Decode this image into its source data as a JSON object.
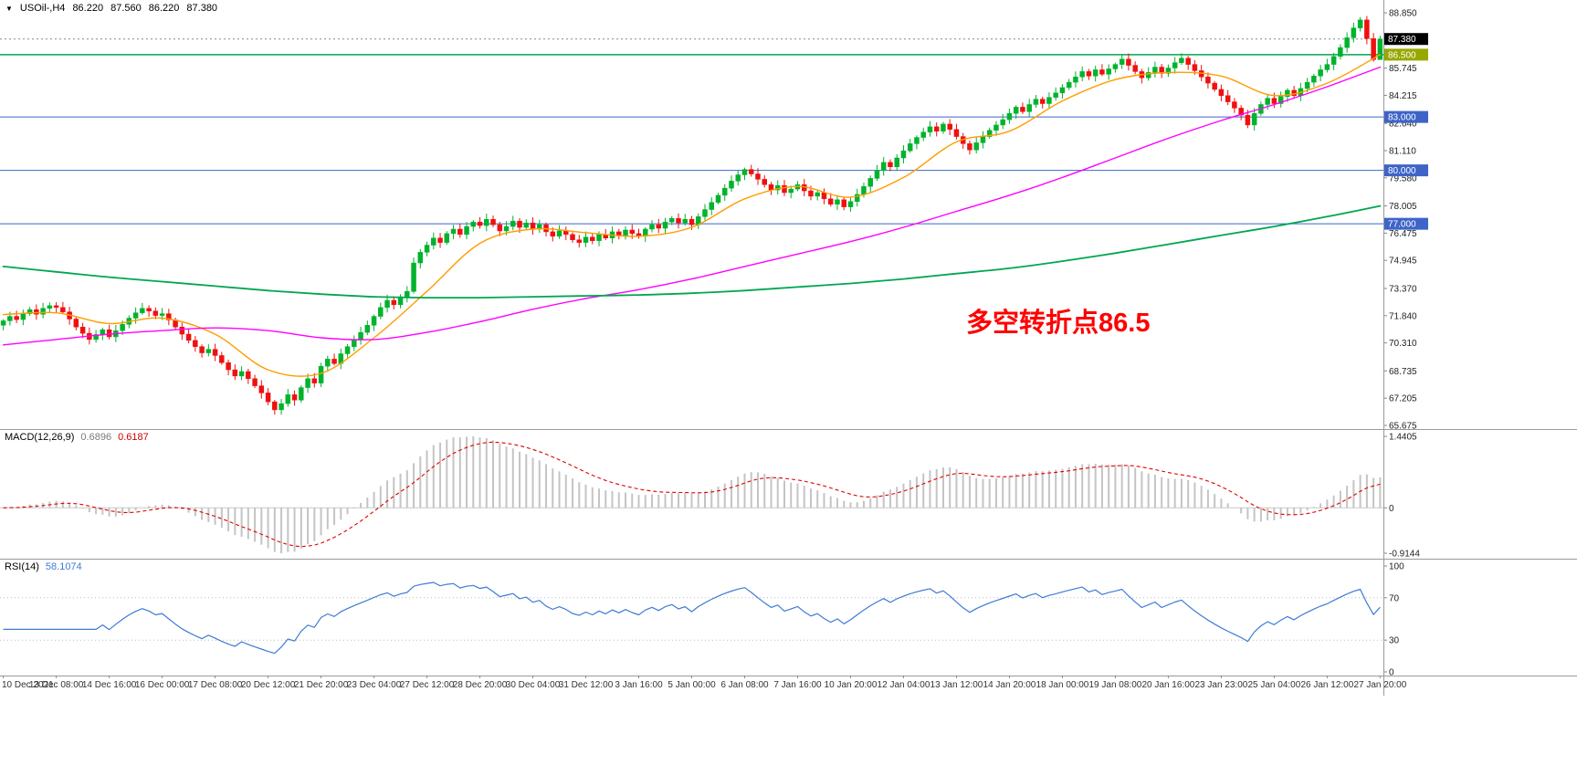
{
  "header": {
    "collapse_icon": "▼",
    "symbol_timeframe": "USOil-,H4",
    "open": "86.220",
    "high": "87.560",
    "low": "86.220",
    "close": "87.380"
  },
  "chart_data": {
    "type": "candlestick",
    "symbol": "USOil-",
    "timeframe": "H4",
    "legend_position": "none",
    "grid": false,
    "x_labels": [
      "10 Dec 2021",
      "13 Dec 08:00",
      "14 Dec 16:00",
      "16 Dec 00:00",
      "17 Dec 08:00",
      "20 Dec 12:00",
      "21 Dec 20:00",
      "23 Dec 04:00",
      "27 Dec 12:00",
      "28 Dec 20:00",
      "30 Dec 04:00",
      "31 Dec 12:00",
      "3 Jan 16:00",
      "5 Jan 00:00",
      "6 Jan 08:00",
      "7 Jan 16:00",
      "10 Jan 20:00",
      "12 Jan 04:00",
      "13 Jan 12:00",
      "14 Jan 20:00",
      "18 Jan 00:00",
      "19 Jan 08:00",
      "20 Jan 16:00",
      "23 Jan 23:00",
      "25 Jan 04:00",
      "26 Jan 12:00",
      "27 Jan 20:00"
    ],
    "candles_per_label_gap": 8,
    "first_open": 71.3,
    "ohlc_current": {
      "open": 86.22,
      "high": 87.56,
      "low": 86.22,
      "close": 87.38
    },
    "closes": [
      71.55,
      71.8,
      71.62,
      71.95,
      72.18,
      71.92,
      72.25,
      72.4,
      72.3,
      72.05,
      71.65,
      71.2,
      70.85,
      70.5,
      70.78,
      71.05,
      70.65,
      71.0,
      71.35,
      71.7,
      72.0,
      72.25,
      72.1,
      71.85,
      71.95,
      71.6,
      71.2,
      70.8,
      70.45,
      70.1,
      69.75,
      69.95,
      69.6,
      69.2,
      68.8,
      68.45,
      68.7,
      68.3,
      67.9,
      67.5,
      67.0,
      66.55,
      66.9,
      67.4,
      67.1,
      67.8,
      68.3,
      68.05,
      69.0,
      69.4,
      69.15,
      69.7,
      70.1,
      70.5,
      70.9,
      71.3,
      71.8,
      72.3,
      72.7,
      72.45,
      72.9,
      73.2,
      74.8,
      75.4,
      75.8,
      76.2,
      75.95,
      76.45,
      76.7,
      76.4,
      76.85,
      77.1,
      76.9,
      77.25,
      76.95,
      76.6,
      76.85,
      77.15,
      76.8,
      77.05,
      76.7,
      76.95,
      76.55,
      76.3,
      76.6,
      76.4,
      76.1,
      75.95,
      76.25,
      76.05,
      76.4,
      76.2,
      76.55,
      76.35,
      76.65,
      76.45,
      76.3,
      76.7,
      76.95,
      76.75,
      77.1,
      77.3,
      77.05,
      77.25,
      76.95,
      77.4,
      77.8,
      78.2,
      78.6,
      79.0,
      79.4,
      79.75,
      80.05,
      79.8,
      79.5,
      79.2,
      78.9,
      79.15,
      78.75,
      78.95,
      79.2,
      78.85,
      78.55,
      78.75,
      78.4,
      78.1,
      78.35,
      77.95,
      78.25,
      78.65,
      79.1,
      79.55,
      80.0,
      80.45,
      80.2,
      80.7,
      81.1,
      81.5,
      81.85,
      82.15,
      82.45,
      82.2,
      82.6,
      82.3,
      81.9,
      81.5,
      81.15,
      81.55,
      81.9,
      82.25,
      82.55,
      82.85,
      83.2,
      83.55,
      83.3,
      83.7,
      84.0,
      83.75,
      84.1,
      84.35,
      84.65,
      84.95,
      85.25,
      85.55,
      85.3,
      85.65,
      85.4,
      85.7,
      85.95,
      86.25,
      85.9,
      85.55,
      85.2,
      85.5,
      85.8,
      85.45,
      85.75,
      86.05,
      86.3,
      85.95,
      85.6,
      85.25,
      84.9,
      84.55,
      84.2,
      83.85,
      83.5,
      83.1,
      82.55,
      83.2,
      83.7,
      84.05,
      83.75,
      84.15,
      84.5,
      84.2,
      84.6,
      84.95,
      85.3,
      85.65,
      85.95,
      86.4,
      86.9,
      87.45,
      88.0,
      88.45,
      87.4,
      86.22,
      87.38
    ],
    "candle_colors": {
      "up": "#00b32c",
      "down": "#ef1010"
    },
    "price_axis": {
      "ticks": [
        88.85,
        85.745,
        84.215,
        82.64,
        81.11,
        79.58,
        78.005,
        76.475,
        74.945,
        73.37,
        71.84,
        70.31,
        68.735,
        67.205,
        65.675
      ],
      "view_max": 89.57,
      "view_min": 65.47
    },
    "hlines": [
      {
        "price": 86.5,
        "label": "86.500",
        "color": "#00a651",
        "label_bg": "#97a800",
        "width": 1.5
      },
      {
        "price": 83.0,
        "label": "83.000",
        "color": "#3e64c8",
        "label_bg": "#3e64c8",
        "width": 1
      },
      {
        "price": 80.0,
        "label": "80.000",
        "color": "#3e64c8",
        "label_bg": "#3e64c8",
        "width": 1
      },
      {
        "price": 77.0,
        "label": "77.000",
        "color": "#3e64c8",
        "label_bg": "#3e64c8",
        "width": 1
      }
    ],
    "current_price": {
      "value": 87.38,
      "label": "87.380",
      "label_bg": "#000000",
      "line_color": "#888888"
    },
    "moving_averages": [
      {
        "name": "ma-fast",
        "color": "#ff9d00",
        "width": 1.4,
        "values": [
          71.9,
          72.0,
          71.4,
          71.7,
          70.8,
          68.8,
          68.6,
          70.6,
          73.2,
          75.9,
          76.7,
          76.5,
          76.3,
          76.8,
          78.4,
          79.1,
          78.5,
          79.6,
          81.6,
          82.2,
          83.9,
          85.1,
          85.5,
          85.3,
          84.2,
          84.9,
          86.5
        ]
      },
      {
        "name": "ma-mid",
        "color": "#ff00ff",
        "width": 1.4,
        "values": [
          70.2,
          70.5,
          70.8,
          71.0,
          71.15,
          71.0,
          70.6,
          70.5,
          70.9,
          71.5,
          72.2,
          72.8,
          73.3,
          73.9,
          74.6,
          75.3,
          76.0,
          76.8,
          77.7,
          78.6,
          79.6,
          80.7,
          81.8,
          82.8,
          83.7,
          84.7,
          85.8
        ]
      },
      {
        "name": "ma-slow",
        "color": "#00a651",
        "width": 1.8,
        "values": [
          74.6,
          74.3,
          74.0,
          73.75,
          73.5,
          73.25,
          73.05,
          72.9,
          72.85,
          72.85,
          72.9,
          72.95,
          73.0,
          73.1,
          73.25,
          73.45,
          73.65,
          73.9,
          74.2,
          74.5,
          74.9,
          75.35,
          75.85,
          76.35,
          76.85,
          77.4,
          78.0
        ]
      }
    ],
    "macd": {
      "label": "MACD(12,26,9)",
      "main_value": "0.6896",
      "signal_value": "0.6187",
      "fast": 12,
      "slow": 26,
      "signal": 9,
      "axis_max": 1.4405,
      "axis_min": -0.9144,
      "axis_ticks": [
        "1.4405",
        "0",
        "-0.9144"
      ],
      "hist_color": "#c4c4c4",
      "signal_color": "#e00000"
    },
    "rsi": {
      "label": "RSI(14)",
      "value": "58.1074",
      "period": 14,
      "axis_ticks": [
        100,
        70,
        30,
        0
      ],
      "levels": [
        70,
        30
      ],
      "color": "#3e7bd6"
    },
    "annotation": {
      "text": "多空转折点86.5",
      "color": "#ff0000"
    }
  }
}
